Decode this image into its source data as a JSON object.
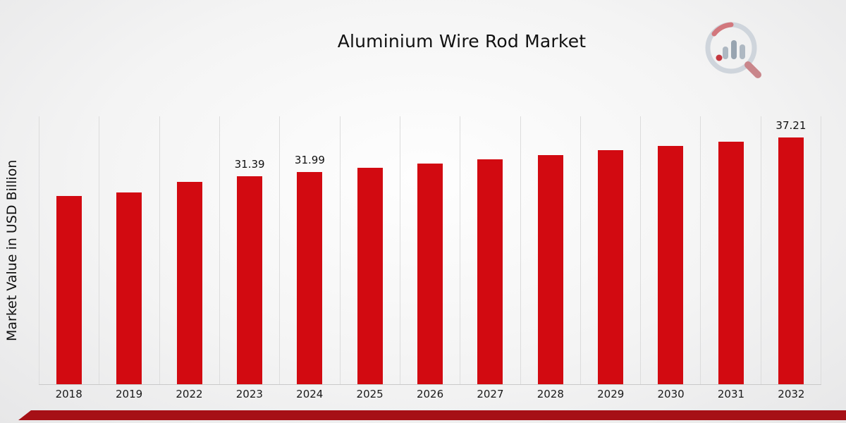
{
  "title": "Aluminium Wire Rod Market",
  "ylabel": "Market Value in USD Billion",
  "accent_color": "#d20a11",
  "footer_color": "#a61016",
  "icons": {
    "logo": "chart-magnifier-logo"
  },
  "chart_data": {
    "type": "bar",
    "title": "Aluminium Wire Rod Market",
    "xlabel": "",
    "ylabel": "Market Value in USD Billion",
    "categories": [
      "2018",
      "2019",
      "2022",
      "2023",
      "2024",
      "2025",
      "2026",
      "2027",
      "2028",
      "2029",
      "2030",
      "2031",
      "2032"
    ],
    "values": [
      28.4,
      28.9,
      30.5,
      31.39,
      31.99,
      32.65,
      33.3,
      33.95,
      34.6,
      35.3,
      35.9,
      36.55,
      37.21
    ],
    "data_labels": [
      null,
      null,
      null,
      "31.39",
      "31.99",
      null,
      null,
      null,
      null,
      null,
      null,
      null,
      "37.21"
    ],
    "ylim": [
      0,
      40.4
    ],
    "bar_color": "#d20a11",
    "grid": "vertical",
    "legend": "none"
  }
}
